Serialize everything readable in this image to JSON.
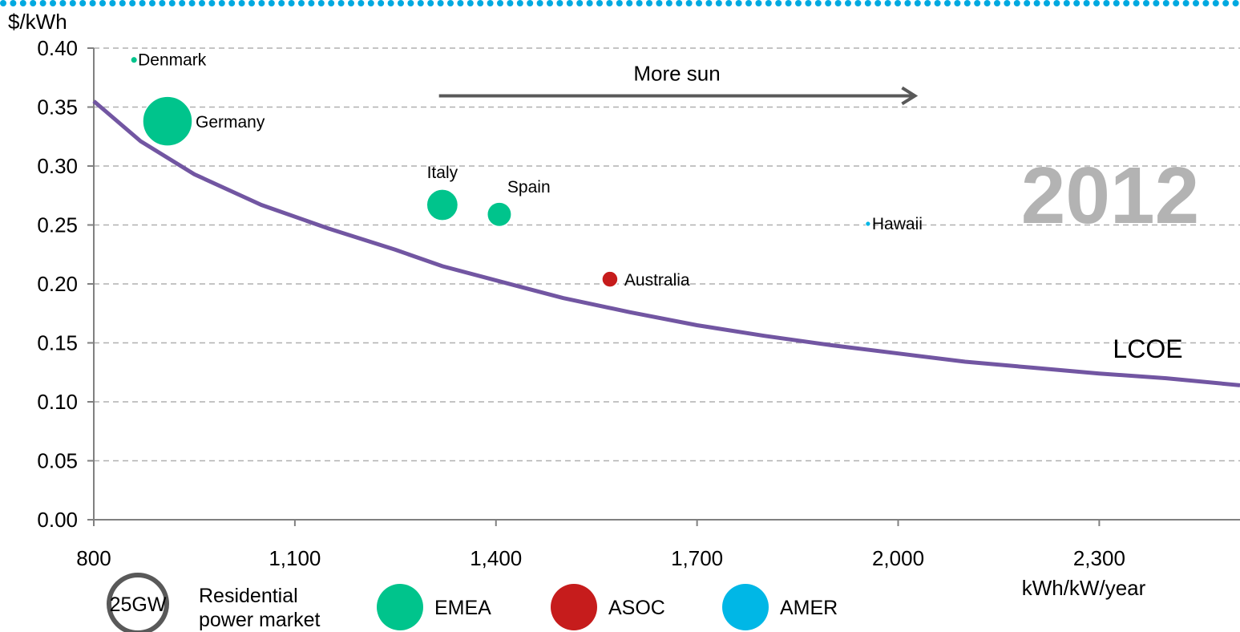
{
  "chart_data": {
    "type": "scatter",
    "year_label": "2012",
    "ylabel": "$/kWh",
    "xlabel": "kWh/kW/year",
    "xlim": [
      800,
      2510
    ],
    "ylim": [
      0,
      0.4
    ],
    "x_ticks": [
      800,
      1100,
      1400,
      1700,
      2000,
      2300
    ],
    "x_tick_labels": [
      "800",
      "1,100",
      "1,400",
      "1,700",
      "2,000",
      "2,300"
    ],
    "y_ticks": [
      0,
      0.05,
      0.1,
      0.15,
      0.2,
      0.25,
      0.3,
      0.35,
      0.4
    ],
    "y_tick_labels": [
      "0.00",
      "0.05",
      "0.10",
      "0.15",
      "0.20",
      "0.25",
      "0.30",
      "0.35",
      "0.40"
    ],
    "grid": "horizontal dashed",
    "annotation": {
      "text": "More sun",
      "from_x": 1315,
      "to_x": 2025,
      "y": 0.365
    },
    "points": [
      {
        "label": "Denmark",
        "x": 860,
        "y": 0.39,
        "size_gw": 0.4,
        "region": "EMEA"
      },
      {
        "label": "Germany",
        "x": 910,
        "y": 0.338,
        "size_gw": 25,
        "region": "EMEA"
      },
      {
        "label": "Italy",
        "x": 1320,
        "y": 0.267,
        "size_gw": 10,
        "region": "EMEA"
      },
      {
        "label": "Spain",
        "x": 1405,
        "y": 0.259,
        "size_gw": 6,
        "region": "EMEA"
      },
      {
        "label": "Australia",
        "x": 1570,
        "y": 0.204,
        "size_gw": 2.6,
        "region": "ASOC"
      },
      {
        "label": "Hawaii",
        "x": 1955,
        "y": 0.251,
        "size_gw": 0.05,
        "region": "AMER"
      }
    ],
    "lcoe": {
      "name": "LCOE",
      "x": [
        800,
        870,
        950,
        1050,
        1150,
        1250,
        1320,
        1400,
        1500,
        1600,
        1700,
        1800,
        1900,
        2000,
        2100,
        2200,
        2300,
        2400,
        2510
      ],
      "y": [
        0.355,
        0.321,
        0.293,
        0.267,
        0.247,
        0.229,
        0.215,
        0.203,
        0.188,
        0.176,
        0.165,
        0.156,
        0.148,
        0.141,
        0.134,
        0.129,
        0.124,
        0.12,
        0.114
      ]
    },
    "legend": {
      "size_ref_label": "25GW",
      "size_ref_text_line1": "Residential",
      "size_ref_text_line2": "power market",
      "regions": [
        {
          "name": "EMEA",
          "color": "#00c48c"
        },
        {
          "name": "ASOC",
          "color": "#c61c1c"
        },
        {
          "name": "AMER",
          "color": "#00b7e6"
        }
      ]
    },
    "colors": {
      "lcoe_line": "#7256a2",
      "arrow": "#595959",
      "year": "#b3b3b3",
      "grid": "#b0b0b0",
      "top_border": "#00a9e0",
      "size_ref_ring": "#595959"
    }
  }
}
